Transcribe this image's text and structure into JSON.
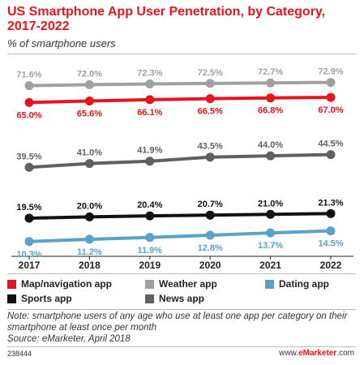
{
  "header": {
    "title": "US Smartphone App User Penetration, by Category, 2017-2022",
    "subtitle": "% of smartphone users"
  },
  "chart_data": {
    "type": "line",
    "x": [
      "2017",
      "2018",
      "2019",
      "2020",
      "2021",
      "2022"
    ],
    "series": [
      {
        "name": "Weather app",
        "color": "#a0a0a0",
        "values": [
          71.6,
          72.0,
          72.3,
          72.5,
          72.7,
          72.9
        ],
        "labels": [
          "71.6%",
          "72.0%",
          "72.3%",
          "72.5%",
          "72.7%",
          "72.9%"
        ],
        "label_pos": "above"
      },
      {
        "name": "Map/navigation app",
        "color": "#e8141c",
        "values": [
          65.0,
          65.6,
          66.1,
          66.5,
          66.8,
          67.0
        ],
        "labels": [
          "65.0%",
          "65.6%",
          "66.1%",
          "66.5%",
          "66.8%",
          "67.0%"
        ],
        "label_pos": "below"
      },
      {
        "name": "News app",
        "color": "#606060",
        "values": [
          39.5,
          41.0,
          41.9,
          43.5,
          44.0,
          44.5
        ],
        "labels": [
          "39.5%",
          "41.0%",
          "41.9%",
          "43.5%",
          "44.0%",
          "44.5%"
        ],
        "label_pos": "above"
      },
      {
        "name": "Sports app",
        "color": "#111111",
        "values": [
          19.5,
          20.0,
          20.4,
          20.7,
          21.0,
          21.3
        ],
        "labels": [
          "19.5%",
          "20.0%",
          "20.4%",
          "20.7%",
          "21.0%",
          "21.3%"
        ],
        "label_pos": "above"
      },
      {
        "name": "Dating app",
        "color": "#5aa2c8",
        "values": [
          10.3,
          11.2,
          11.9,
          12.8,
          13.7,
          14.5
        ],
        "labels": [
          "10.3%",
          "11.2%",
          "11.9%",
          "12.8%",
          "13.7%",
          "14.5%"
        ],
        "label_pos": "below"
      }
    ],
    "ylim": [
      8,
      75
    ],
    "grid": false,
    "legend_position": "bottom"
  },
  "legend": {
    "items": [
      {
        "label": "Map/navigation app",
        "color": "#e8141c"
      },
      {
        "label": "Weather app",
        "color": "#a0a0a0"
      },
      {
        "label": "Dating app",
        "color": "#5aa2c8"
      },
      {
        "label": "Sports app",
        "color": "#111111"
      },
      {
        "label": "News app",
        "color": "#606060"
      }
    ]
  },
  "note": {
    "text": "Note: smartphone users of any age who use at least one app per category on their smartphone at least once per month",
    "source": "Source: eMarketer, April 2018"
  },
  "footer": {
    "id": "238444",
    "brand_prefix": "www.",
    "brand_name": "eMarketer",
    "brand_suffix": ".com"
  }
}
